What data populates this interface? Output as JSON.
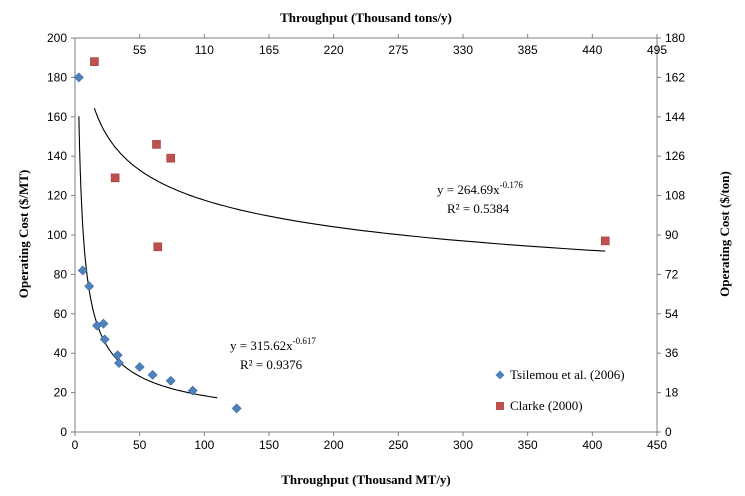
{
  "chart_data": {
    "type": "scatter",
    "title": "",
    "xlabel": "Throughput (Thousand MT/y)",
    "ylabel": "Operating Cost ($/MT)",
    "x2label": "Throughput (Thousand tons/y)",
    "y2label": "Operating Cost ($/ton)",
    "xlim": [
      0,
      450
    ],
    "ylim": [
      0,
      200
    ],
    "x2lim": [
      0,
      495
    ],
    "y2lim": [
      0,
      180
    ],
    "x_ticks": [
      "0",
      "50",
      "100",
      "150",
      "200",
      "250",
      "300",
      "350",
      "400",
      "450"
    ],
    "y_ticks": [
      "0",
      "20",
      "40",
      "60",
      "80",
      "100",
      "120",
      "140",
      "160",
      "180",
      "200"
    ],
    "x2_ticks": [
      "0",
      "55",
      "110",
      "165",
      "220",
      "275",
      "330",
      "385",
      "440",
      "495"
    ],
    "y2_ticks": [
      "0",
      "18",
      "36",
      "54",
      "72",
      "90",
      "108",
      "126",
      "144",
      "162",
      "180"
    ],
    "grid": false,
    "legend_position": "bottom-right",
    "series": [
      {
        "name": "Tsilemou et al. (2006)",
        "marker": "diamond",
        "color": "#4F81BD",
        "x": [
          3,
          6,
          11,
          17,
          22,
          23,
          33,
          34,
          50,
          60,
          74,
          91,
          125
        ],
        "y": [
          180,
          82,
          74,
          54,
          55,
          47,
          39,
          35,
          33,
          29,
          26,
          21,
          12
        ],
        "trendline": {
          "type": "power",
          "a": 315.62,
          "b": -0.617,
          "x_range": [
            3,
            110
          ],
          "equation": "y = 315.62x-0.617",
          "equation_base": "y = 315.62x",
          "equation_exp": "-0.617",
          "r2": "R² = 0.9376"
        }
      },
      {
        "name": "Clarke (2000)",
        "marker": "square",
        "color": "#C0504D",
        "x": [
          15,
          31,
          63,
          64,
          74,
          410
        ],
        "y": [
          188,
          129,
          146,
          94,
          139,
          97
        ],
        "trendline": {
          "type": "power",
          "a": 264.69,
          "b": -0.176,
          "x_range": [
            15,
            410
          ],
          "equation": "y = 264.69x-0.176",
          "equation_base": "y = 264.69x",
          "equation_exp": "-0.176",
          "r2": "R² = 0.5384"
        }
      }
    ]
  }
}
